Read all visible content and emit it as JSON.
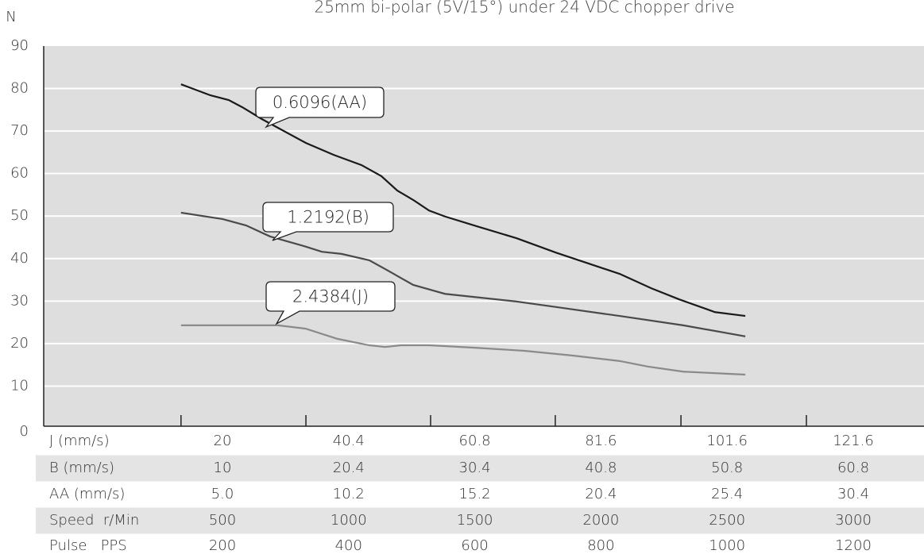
{
  "chart_data": {
    "type": "line",
    "title": "25mm bi-polar (5V/15°) under 24 VDC chopper drive",
    "y_label": "N",
    "xlim": [
      -208,
      3280
    ],
    "xticks": [
      336,
      831,
      1325,
      1819,
      2317,
      2814
    ],
    "ylim": [
      0,
      90
    ],
    "yticks": [
      0,
      10,
      20,
      30,
      40,
      50,
      60,
      70,
      80,
      90
    ],
    "grid": true,
    "series": [
      {
        "name": "0.6096(AA)",
        "color": "#1a1a1a",
        "x": [
          336,
          453,
          525,
          579,
          657,
          831,
          941,
          1051,
          1130,
          1193,
          1256,
          1319,
          1382,
          1508,
          1665,
          1822,
          2074,
          2200,
          2310,
          2452,
          2572
        ],
        "values": [
          81,
          78.4,
          77.3,
          75.6,
          72.8,
          67.2,
          64.4,
          62,
          59.4,
          56,
          53.8,
          51.3,
          49.9,
          47.6,
          44.8,
          41.4,
          36.4,
          33,
          30.4,
          27.4,
          26.5
        ]
      },
      {
        "name": "1.2192(B)",
        "color": "#4a4a4a",
        "x": [
          336,
          500,
          594,
          689,
          831,
          894,
          972,
          1082,
          1161,
          1256,
          1334,
          1382,
          1665,
          1822,
          2074,
          2326,
          2572
        ],
        "values": [
          50.8,
          49.3,
          47.8,
          45.2,
          42.8,
          41.6,
          41.1,
          39.6,
          37,
          33.8,
          32.5,
          31.7,
          29.9,
          28.6,
          26.5,
          24.3,
          21.7
        ]
      },
      {
        "name": "2.4384(J)",
        "color": "#8a8a8a",
        "x": [
          336,
          720,
          831,
          957,
          1082,
          1145,
          1208,
          1319,
          1508,
          1697,
          1885,
          2074,
          2185,
          2326,
          2572
        ],
        "values": [
          24.3,
          24.3,
          23.5,
          21.1,
          19.6,
          19.2,
          19.6,
          19.6,
          19,
          18.3,
          17.2,
          15.9,
          14.6,
          13.4,
          12.7
        ]
      }
    ]
  },
  "table": {
    "rows": [
      [
        "J (mm/s)",
        "20",
        "40.4",
        "60.8",
        "81.6",
        "101.6",
        "121.6"
      ],
      [
        "B (mm/s)",
        "10",
        "20.4",
        "30.4",
        "40.8",
        "50.8",
        "60.8"
      ],
      [
        "AA (mm/s)",
        "5.0",
        "10.2",
        "15.2",
        "20.4",
        "25.4",
        "30.4"
      ],
      [
        "Speed  r/Min",
        "500",
        "1000",
        "1500",
        "2000",
        "2500",
        "3000"
      ],
      [
        "Pulse   PPS",
        "200",
        "400",
        "600",
        "800",
        "1000",
        "1200"
      ]
    ]
  }
}
